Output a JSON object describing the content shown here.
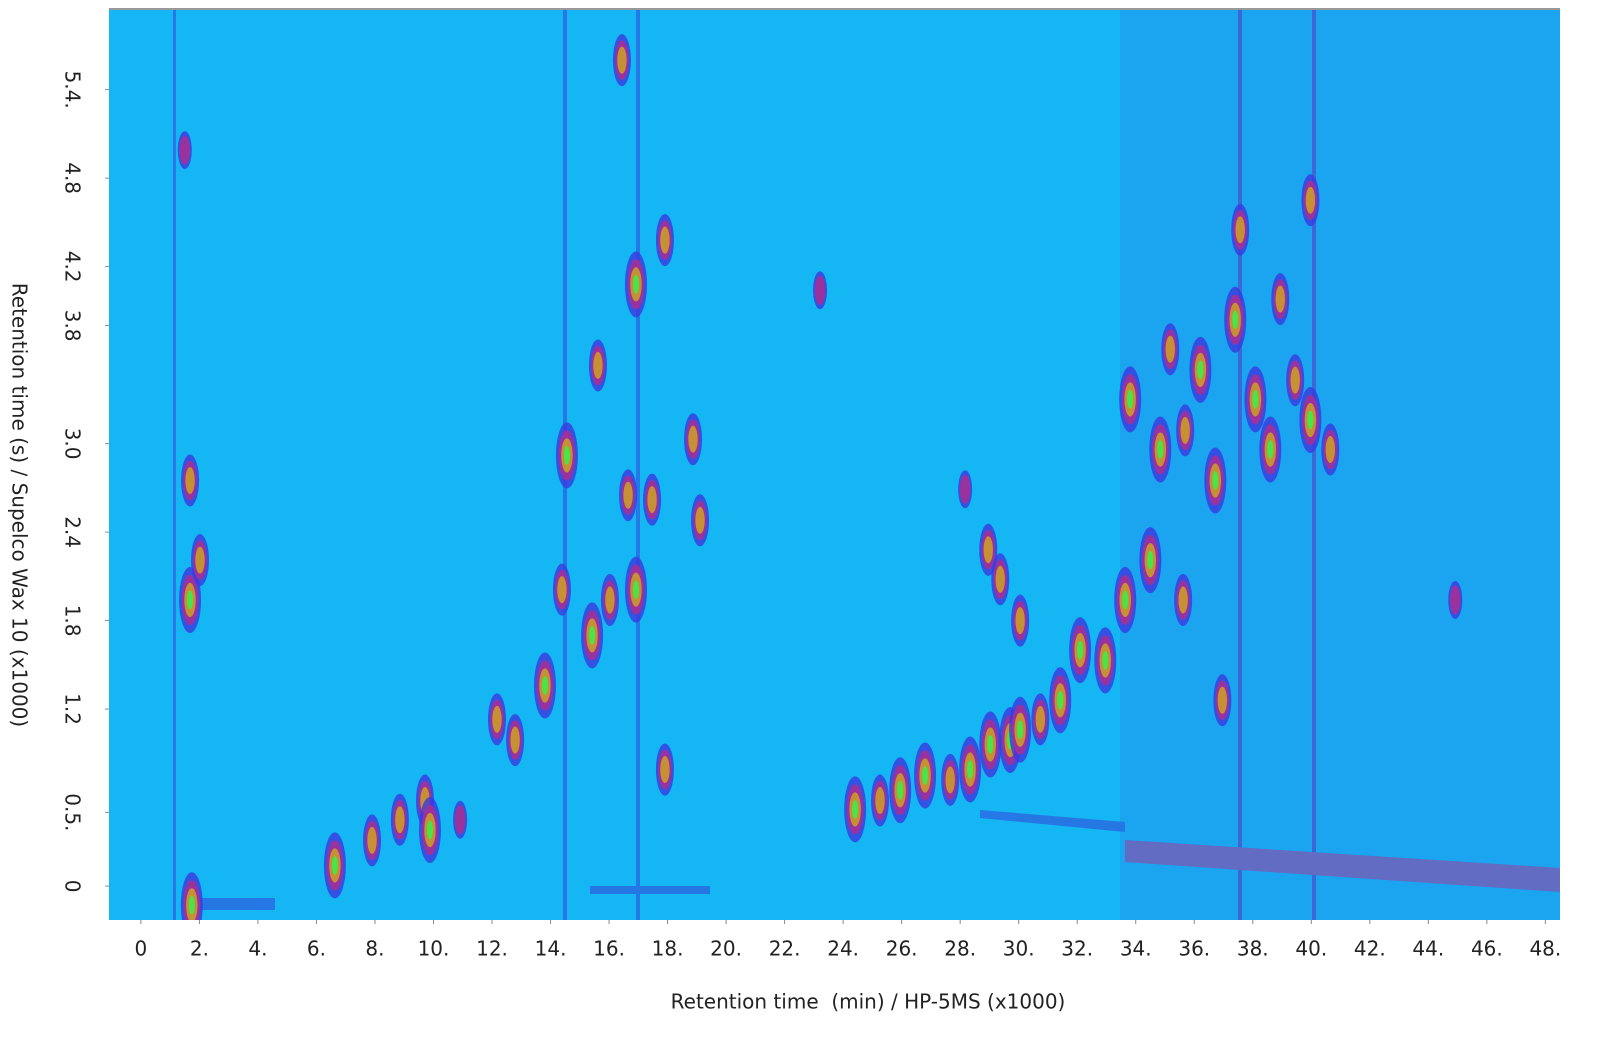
{
  "chart_data": {
    "type": "contour",
    "xlabel": "Retention time  (min) / HP-5MS (x1000)",
    "ylabel": "Retention time (s) / Supelco Wax 10 (x1000)",
    "xlim": [
      -1.09,
      48.5
    ],
    "ylim": [
      -0.23,
      5.94
    ],
    "xticks": [
      0,
      {
        "value": 2,
        "label": "2."
      },
      {
        "value": 4,
        "label": "4."
      },
      {
        "value": 6,
        "label": "6."
      },
      {
        "value": 8,
        "label": "8."
      },
      {
        "value": 10,
        "label": "10."
      },
      {
        "value": 12,
        "label": "12."
      },
      {
        "value": 14,
        "label": "14."
      },
      {
        "value": 16,
        "label": "16."
      },
      {
        "value": 18,
        "label": "18."
      },
      {
        "value": 20,
        "label": "20."
      },
      {
        "value": 22,
        "label": "22."
      },
      {
        "value": 24,
        "label": "24."
      },
      {
        "value": 26,
        "label": "26."
      },
      {
        "value": 28,
        "label": "28."
      },
      {
        "value": 30,
        "label": "30."
      },
      {
        "value": 32,
        "label": "32."
      },
      {
        "value": 34,
        "label": "34."
      },
      {
        "value": 36,
        "label": "36."
      },
      {
        "value": 38,
        "label": "38."
      },
      {
        "value": 40,
        "label": "40."
      },
      {
        "value": 42,
        "label": "42."
      },
      {
        "value": 44,
        "label": "44."
      },
      {
        "value": 46,
        "label": "46."
      },
      {
        "value": 48,
        "label": "48."
      }
    ],
    "yticks": [
      0,
      {
        "value": 0.5,
        "label": "0.5."
      },
      1.2,
      1.8,
      2.4,
      {
        "value": 3.0,
        "label": "3.0"
      },
      3.8,
      4.2,
      4.8,
      {
        "value": 5.4,
        "label": "5.4."
      }
    ],
    "background": "#14b6f4",
    "colormap": [
      "#3a3ae0",
      "#a0309a",
      "#c8962e",
      "#44e84a"
    ],
    "x": [
      1.74,
      1.68,
      1.68,
      2.02,
      6.63,
      7.9,
      8.85,
      9.71,
      9.88,
      10.91,
      12.17,
      12.79,
      13.81,
      14.56,
      14.39,
      15.42,
      15.62,
      16.03,
      16.65,
      16.92,
      16.92,
      17.47,
      17.91,
      18.87,
      19.11,
      16.44,
      17.91,
      24.41,
      25.26,
      25.95,
      26.8,
      27.66,
      28.34,
      29.03,
      29.71,
      30.05,
      30.74,
      31.42,
      32.1,
      32.96,
      33.64,
      33.81,
      34.5,
      34.84,
      35.18,
      35.69,
      36.21,
      36.72,
      37.4,
      37.57,
      38.09,
      38.6,
      38.94,
      39.45,
      39.97,
      36.96,
      39.97,
      40.65,
      35.62,
      29.37,
      30.05,
      28.96,
      1.5,
      23.21,
      28.17,
      44.92
    ],
    "y": [
      -0.13,
      1.94,
      2.75,
      2.21,
      0.14,
      0.31,
      0.45,
      0.58,
      0.38,
      0.45,
      1.13,
      0.99,
      1.36,
      2.92,
      2.01,
      1.7,
      3.53,
      1.94,
      2.65,
      2.01,
      4.08,
      2.62,
      0.79,
      3.03,
      2.48,
      5.6,
      4.38,
      0.52,
      0.58,
      0.65,
      0.75,
      0.72,
      0.79,
      0.96,
      0.99,
      1.06,
      1.13,
      1.26,
      1.6,
      1.53,
      1.94,
      3.3,
      2.21,
      2.96,
      3.64,
      3.09,
      3.5,
      2.75,
      3.84,
      4.45,
      3.3,
      2.96,
      3.98,
      3.43,
      3.16,
      1.26,
      4.65,
      2.96,
      1.94,
      2.08,
      1.8,
      2.28,
      4.99,
      4.04,
      2.69,
      1.94
    ],
    "intensity": [
      3,
      3,
      2,
      2,
      3,
      2,
      2,
      2,
      3,
      1,
      2,
      2,
      3,
      3,
      2,
      3,
      2,
      2,
      2,
      3,
      3,
      2,
      2,
      2,
      2,
      2,
      2,
      3,
      2,
      3,
      3,
      2,
      3,
      3,
      3,
      3,
      2,
      3,
      3,
      3,
      3,
      3,
      3,
      3,
      2,
      2,
      3,
      3,
      3,
      2,
      3,
      3,
      2,
      2,
      3,
      2,
      2,
      2,
      2,
      2,
      2,
      2,
      1,
      1,
      1,
      1
    ]
  }
}
